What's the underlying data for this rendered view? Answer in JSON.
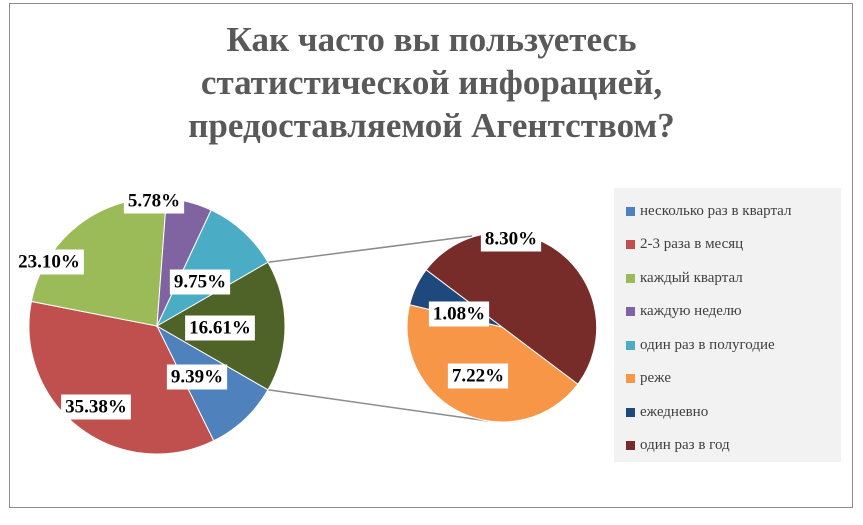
{
  "title_lines": [
    "Как часто вы пользуетесь",
    "статистической инфорацией,",
    "предоставляемой Агентством?"
  ],
  "chart_data": {
    "type": "pie",
    "subtype": "pie-of-pie",
    "title": "Как часто вы пользуетесь статистической инфорацией, предоставляемой Агентством?",
    "legend_position": "right",
    "slices": [
      {
        "label": "несколько раз в квартал",
        "value": 9.39,
        "display": "9.39%",
        "color": "#4f81bd",
        "chart": "main"
      },
      {
        "label": "2-3  раза в месяц",
        "value": 35.38,
        "display": "35.38%",
        "color": "#c0504d",
        "chart": "main"
      },
      {
        "label": "каждый квартал",
        "value": 23.1,
        "display": "23.10%",
        "color": "#9bbb59",
        "chart": "main"
      },
      {
        "label": "каждую неделю",
        "value": 5.78,
        "display": "5.78%",
        "color": "#8064a2",
        "chart": "main"
      },
      {
        "label": "один раз в полугодие",
        "value": 9.75,
        "display": "9.75%",
        "color": "#4bacc6",
        "chart": "main"
      },
      {
        "label": "реже",
        "value": 7.22,
        "display": "7.22%",
        "color": "#f79646",
        "chart": "secondary"
      },
      {
        "label": "ежедневно",
        "value": 1.08,
        "display": "1.08%",
        "color": "#1f497d",
        "chart": "secondary"
      },
      {
        "label": "один раз в год",
        "value": 8.3,
        "display": "8.30%",
        "color": "#772c2a",
        "chart": "secondary"
      }
    ],
    "other": {
      "value": 16.61,
      "display": "16.61%",
      "color": "#4f6228"
    }
  }
}
